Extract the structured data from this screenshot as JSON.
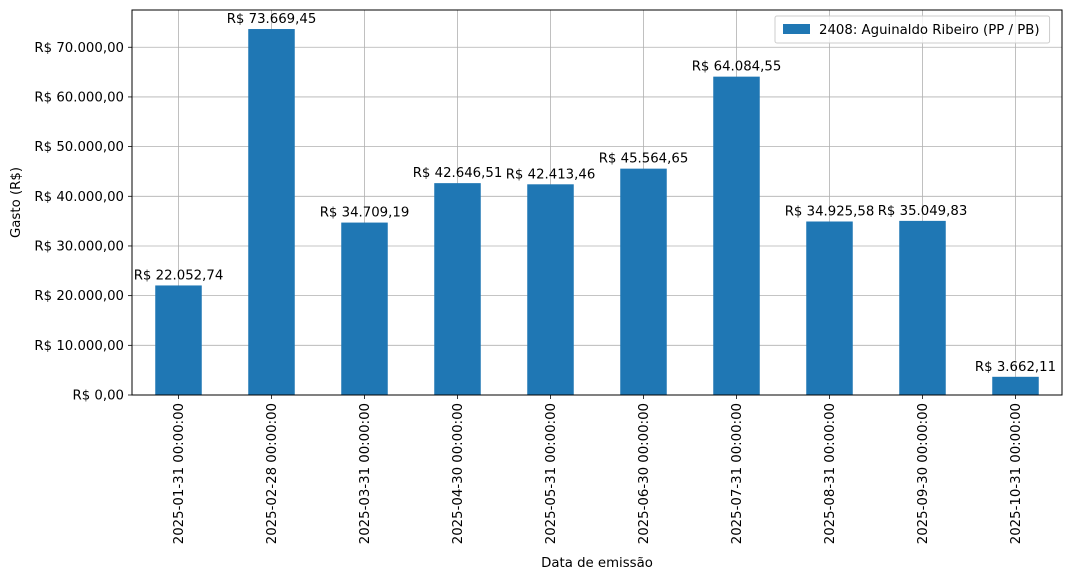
{
  "chart_data": {
    "type": "bar",
    "title": "",
    "xlabel": "Data de emissão",
    "ylabel": "Gasto (R$)",
    "ylim": [
      0,
      77500
    ],
    "grid": true,
    "legend_position": "top-right",
    "bar_color": "#1f77b4",
    "categories": [
      "2025-01-31 00:00:00",
      "2025-02-28 00:00:00",
      "2025-03-31 00:00:00",
      "2025-04-30 00:00:00",
      "2025-05-31 00:00:00",
      "2025-06-30 00:00:00",
      "2025-07-31 00:00:00",
      "2025-08-31 00:00:00",
      "2025-09-30 00:00:00",
      "2025-10-31 00:00:00"
    ],
    "series": [
      {
        "name": "2408: Aguinaldo Ribeiro (PP / PB)",
        "values": [
          22052.74,
          73669.45,
          34709.19,
          42646.51,
          42413.46,
          45564.65,
          64084.55,
          34925.58,
          35049.83,
          3662.11
        ],
        "labels": [
          "R$ 22.052,74",
          "R$ 73.669,45",
          "R$ 34.709,19",
          "R$ 42.646,51",
          "R$ 42.413,46",
          "R$ 45.564,65",
          "R$ 64.084,55",
          "R$ 34.925,58",
          "R$ 35.049,83",
          "R$ 3.662,11"
        ]
      }
    ],
    "yticks": [
      0,
      10000,
      20000,
      30000,
      40000,
      50000,
      60000,
      70000
    ],
    "ytick_labels": [
      "R$ 0,00",
      "R$ 10.000,00",
      "R$ 20.000,00",
      "R$ 30.000,00",
      "R$ 40.000,00",
      "R$ 50.000,00",
      "R$ 60.000,00",
      "R$ 70.000,00"
    ]
  }
}
